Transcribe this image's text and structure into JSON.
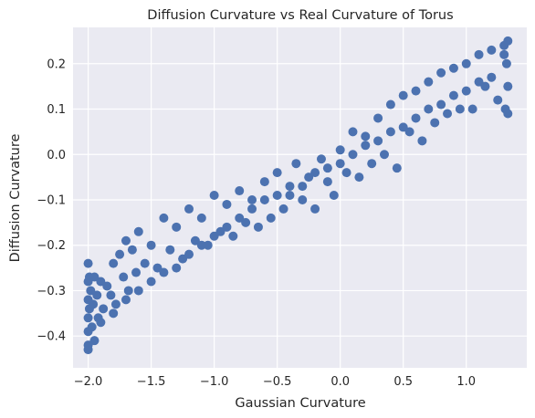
{
  "chart_data": {
    "type": "scatter",
    "title": "Diffusion Curvature vs Real Curvature of Torus",
    "xlabel": "Gaussian Curvature",
    "ylabel": "Diffusion Curvature",
    "xlim": [
      -2.12,
      1.48
    ],
    "ylim": [
      -0.47,
      0.28
    ],
    "xticks": [
      -2.0,
      -1.5,
      -1.0,
      -0.5,
      0.0,
      0.5,
      1.0
    ],
    "xtick_labels": [
      "−2.0",
      "−1.5",
      "−1.0",
      "−0.5",
      "0.0",
      "0.5",
      "1.0"
    ],
    "yticks": [
      -0.4,
      -0.3,
      -0.2,
      -0.1,
      0.0,
      0.1,
      0.2
    ],
    "ytick_labels": [
      "−0.4",
      "−0.3",
      "−0.2",
      "−0.1",
      "0.0",
      "0.1",
      "0.2"
    ],
    "grid": true,
    "background_color": "#eaeaf2",
    "point_color": "#4c72b0",
    "series": [
      {
        "x": [
          -2.0,
          -2.0,
          -2.0,
          -2.0,
          -2.0,
          -2.0,
          -2.0,
          -1.99,
          -1.99,
          -1.98,
          -1.97,
          -1.96,
          -1.95,
          -1.95,
          -1.93,
          -1.92,
          -1.9,
          -1.88,
          -1.85,
          -1.82,
          -1.8,
          -1.78,
          -1.75,
          -1.72,
          -1.7,
          -1.68,
          -1.65,
          -1.62,
          -1.6,
          -1.55,
          -1.5,
          -1.45,
          -1.4,
          -1.35,
          -1.3,
          -1.25,
          -1.2,
          -1.15,
          -1.1,
          -1.05,
          -1.0,
          -0.95,
          -0.9,
          -0.85,
          -0.8,
          -0.75,
          -0.7,
          -0.65,
          -0.6,
          -0.55,
          -0.5,
          -0.45,
          -0.4,
          -0.35,
          -0.3,
          -0.25,
          -0.2,
          -0.15,
          -0.1,
          -0.05,
          0.0,
          0.05,
          0.1,
          0.15,
          0.2,
          0.25,
          0.3,
          0.35,
          0.4,
          0.45,
          0.5,
          0.55,
          0.6,
          0.65,
          0.7,
          0.75,
          0.8,
          0.85,
          0.9,
          0.95,
          1.0,
          1.05,
          1.1,
          1.15,
          1.2,
          1.25,
          1.3,
          1.33,
          1.33,
          1.33,
          1.32,
          1.31,
          1.3,
          -1.9,
          -1.8,
          -1.7,
          -1.6,
          -1.5,
          -1.4,
          -1.3,
          -1.2,
          -1.1,
          -1.0,
          -0.9,
          -0.8,
          -0.7,
          -0.6,
          -0.5,
          -0.4,
          -0.3,
          -0.2,
          -0.1,
          0.0,
          0.1,
          0.2,
          0.3,
          0.4,
          0.5,
          0.6,
          0.7,
          0.8,
          0.9,
          1.0,
          1.1,
          1.2
        ],
        "y": [
          -0.24,
          -0.28,
          -0.32,
          -0.36,
          -0.39,
          -0.42,
          -0.43,
          -0.27,
          -0.34,
          -0.3,
          -0.38,
          -0.33,
          -0.27,
          -0.41,
          -0.31,
          -0.36,
          -0.28,
          -0.34,
          -0.29,
          -0.31,
          -0.24,
          -0.33,
          -0.22,
          -0.27,
          -0.19,
          -0.3,
          -0.21,
          -0.26,
          -0.17,
          -0.24,
          -0.2,
          -0.25,
          -0.14,
          -0.21,
          -0.16,
          -0.23,
          -0.12,
          -0.19,
          -0.14,
          -0.2,
          -0.09,
          -0.17,
          -0.11,
          -0.18,
          -0.08,
          -0.15,
          -0.1,
          -0.16,
          -0.06,
          -0.14,
          -0.04,
          -0.12,
          -0.09,
          -0.02,
          -0.1,
          -0.05,
          -0.12,
          -0.01,
          -0.06,
          -0.09,
          0.01,
          -0.04,
          0.05,
          -0.05,
          0.04,
          -0.02,
          0.08,
          0.0,
          0.11,
          -0.03,
          0.13,
          0.05,
          0.14,
          0.03,
          0.16,
          0.07,
          0.18,
          0.09,
          0.19,
          0.1,
          0.2,
          0.1,
          0.22,
          0.15,
          0.23,
          0.12,
          0.24,
          0.25,
          0.15,
          0.09,
          0.2,
          0.1,
          0.22,
          -0.37,
          -0.35,
          -0.32,
          -0.3,
          -0.28,
          -0.26,
          -0.25,
          -0.22,
          -0.2,
          -0.18,
          -0.16,
          -0.14,
          -0.12,
          -0.1,
          -0.09,
          -0.07,
          -0.07,
          -0.04,
          -0.03,
          -0.02,
          0.0,
          0.02,
          0.03,
          0.05,
          0.06,
          0.08,
          0.1,
          0.11,
          0.13,
          0.14,
          0.16,
          0.17
        ]
      }
    ]
  }
}
